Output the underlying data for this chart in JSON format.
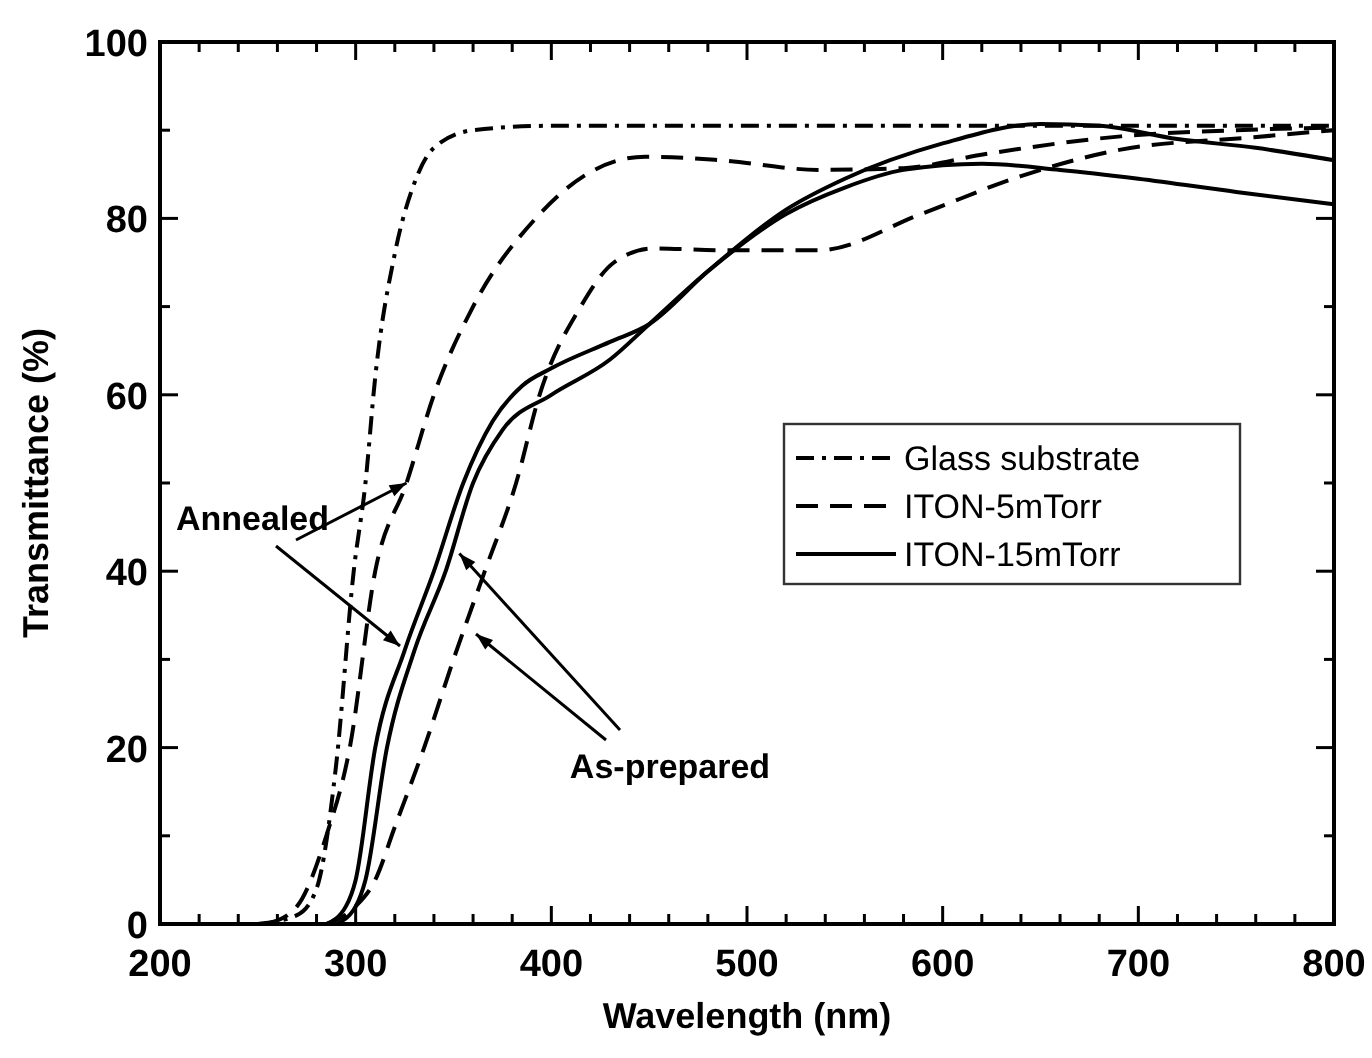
{
  "chart_data": {
    "type": "line",
    "xlabel": "Wavelength  (nm)",
    "ylabel": "Transmittance  (%)",
    "xlim": [
      200,
      800
    ],
    "ylim": [
      0,
      100
    ],
    "xticks": [
      200,
      {
        "value": 220,
        "label": null
      },
      {
        "value": 240,
        "label": null
      },
      {
        "value": 260,
        "label": null
      },
      {
        "value": 280,
        "label": null
      },
      300,
      {
        "value": 320,
        "label": null
      },
      {
        "value": 340,
        "label": null
      },
      {
        "value": 360,
        "label": null
      },
      {
        "value": 380,
        "label": null
      },
      400,
      {
        "value": 420,
        "label": null
      },
      {
        "value": 440,
        "label": null
      },
      {
        "value": 460,
        "label": null
      },
      {
        "value": 480,
        "label": null
      },
      500,
      {
        "value": 520,
        "label": null
      },
      {
        "value": 540,
        "label": null
      },
      {
        "value": 560,
        "label": null
      },
      {
        "value": 580,
        "label": null
      },
      600,
      {
        "value": 620,
        "label": null
      },
      {
        "value": 640,
        "label": null
      },
      {
        "value": 660,
        "label": null
      },
      {
        "value": 680,
        "label": null
      },
      700,
      {
        "value": 720,
        "label": null
      },
      {
        "value": 740,
        "label": null
      },
      {
        "value": 760,
        "label": null
      },
      {
        "value": 780,
        "label": null
      },
      800
    ],
    "yticks": [
      0,
      {
        "value": 10,
        "label": null
      },
      20,
      {
        "value": 30,
        "label": null
      },
      40,
      {
        "value": 50,
        "label": null
      },
      60,
      {
        "value": 70,
        "label": null
      },
      80,
      {
        "value": 90,
        "label": null
      },
      100
    ],
    "grid": false,
    "legend": "right",
    "marker": "none",
    "series": [
      {
        "name": "Glass substrate",
        "color": "#000000",
        "line_style": "dashdot",
        "x": [
          250,
          270,
          280,
          290,
          299,
          305,
          310,
          320,
          330,
          340,
          360,
          400,
          500,
          600,
          700,
          800
        ],
        "values": [
          0,
          1,
          4,
          18,
          40,
          50,
          62,
          76,
          84,
          88,
          90,
          90.5,
          90.5,
          90.5,
          90.5,
          90.5
        ]
      },
      {
        "name": "ITON-5mTorr",
        "color": "#000000",
        "line_style": "dashed",
        "x": [
          255,
          270,
          285,
          297,
          310,
          326,
          340,
          360,
          392,
          418,
          448,
          486,
          537,
          580,
          622,
          691,
          750,
          800
        ],
        "values": [
          0,
          2,
          10,
          20,
          40,
          50,
          60,
          70,
          80,
          85,
          87,
          86.6,
          85.5,
          85.7,
          87.3,
          89.3,
          90,
          90.3
        ]
      },
      {
        "color": "#000000",
        "line_style": "dashed",
        "x": [
          285,
          300,
          310,
          320,
          335,
          350,
          366,
          382,
          394,
          415,
          432,
          452,
          486,
          537,
          589,
          640,
          691,
          759,
          800
        ],
        "values": [
          0,
          2,
          5,
          11,
          20,
          30,
          40,
          50,
          60,
          70,
          75,
          76.6,
          76.4,
          76.4,
          80.5,
          84.8,
          87.8,
          89.2,
          90
        ]
      },
      {
        "name": "ITON-15mTorr",
        "color": "#000000",
        "line_style": "solid",
        "x": [
          285,
          295,
          300,
          310,
          325,
          340,
          355,
          370,
          385,
          400,
          430,
          450,
          480,
          520,
          550,
          600,
          650,
          680,
          720,
          760,
          800
        ],
        "values": [
          0,
          2,
          5,
          20,
          31,
          40,
          50,
          57,
          61,
          63,
          66,
          68,
          74,
          81,
          84.5,
          88.5,
          90.7,
          90.5,
          89,
          88,
          86.6
        ]
      },
      {
        "color": "#000000",
        "line_style": "solid",
        "x": [
          290,
          300,
          305,
          316,
          330,
          346,
          360,
          375,
          400,
          430,
          450,
          480,
          520,
          550,
          580,
          620,
          660,
          700,
          750,
          800
        ],
        "values": [
          0,
          2,
          5,
          20,
          31,
          40,
          50,
          56,
          60,
          64,
          68,
          74,
          80.5,
          83.5,
          85.5,
          86.2,
          85.5,
          84.5,
          83,
          81.6
        ]
      }
    ],
    "annotations": [
      {
        "text": "Annealed",
        "x": 326,
        "y": 50
      },
      {
        "text": "As-prepared",
        "x": 353,
        "y": 42
      }
    ]
  }
}
